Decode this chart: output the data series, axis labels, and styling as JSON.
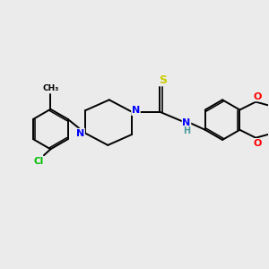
{
  "background_color": "#ebebeb",
  "bond_color": "#000000",
  "atom_colors": {
    "N": "#0000ff",
    "S": "#cccc00",
    "O": "#ff0000",
    "Cl": "#00bb00",
    "C": "#000000",
    "H": "#4a9a9a"
  },
  "figsize": [
    3.0,
    3.0
  ],
  "dpi": 100,
  "lw": 1.4,
  "lw2": 1.0,
  "font": 7.5
}
